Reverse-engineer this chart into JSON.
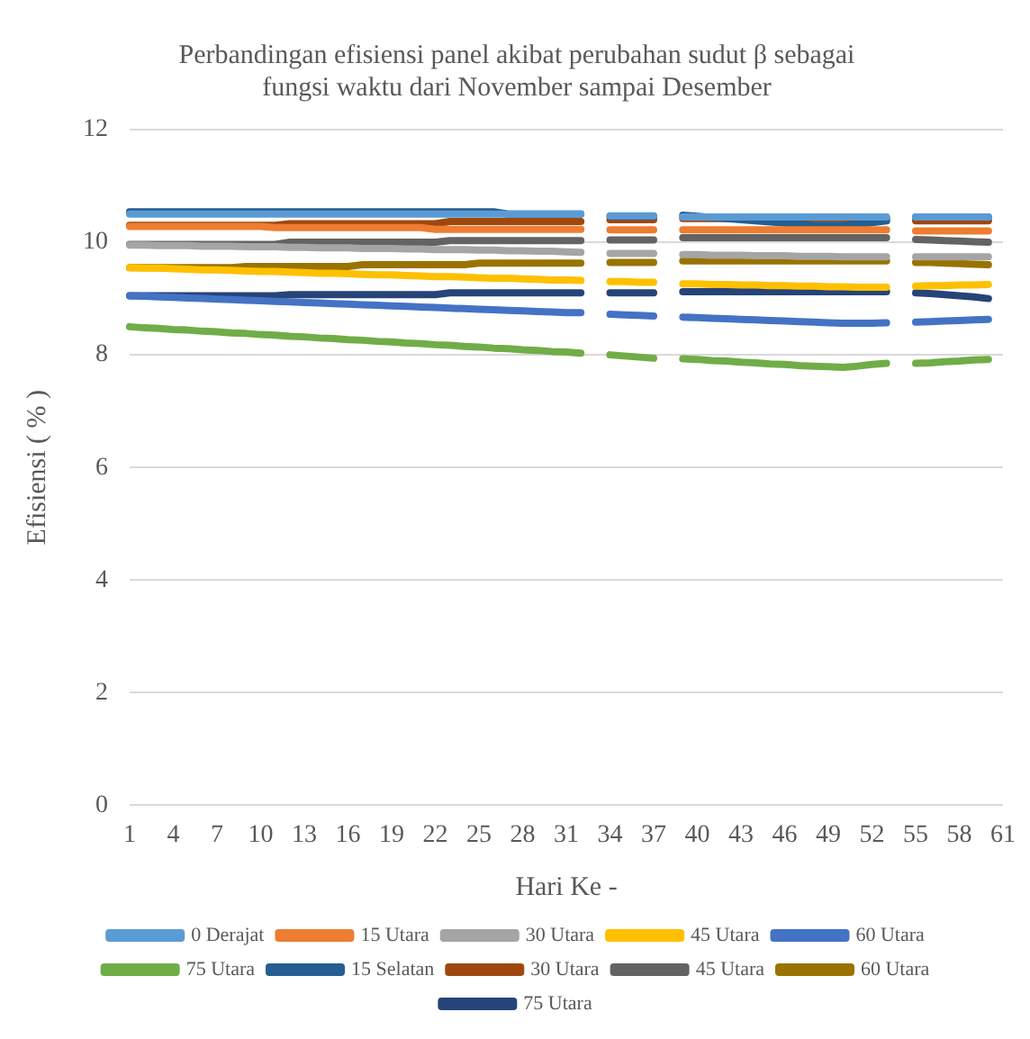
{
  "chart_data": {
    "type": "line",
    "title": "Perbandingan efisiensi panel akibat perubahan sudut β sebagai fungsi waktu dari November sampai Desember",
    "xlabel": "Hari Ke -",
    "ylabel": "Efisiensi ( % )",
    "categories": [
      "1",
      null,
      null,
      "4",
      null,
      null,
      "7",
      null,
      null,
      "10",
      null,
      null,
      "13",
      null,
      null,
      "16",
      null,
      null,
      "19",
      null,
      null,
      "22",
      null,
      null,
      "25",
      null,
      null,
      "28",
      null,
      null,
      "31",
      null,
      null,
      "34",
      null,
      null,
      "37",
      null,
      null,
      "40",
      null,
      null,
      "43",
      null,
      null,
      "46",
      null,
      null,
      "49",
      null,
      null,
      "52",
      null,
      null,
      "55",
      null,
      null,
      "58",
      null,
      null,
      "61"
    ],
    "ylim": [
      0,
      12
    ],
    "yticks": [
      0,
      2,
      4,
      6,
      8,
      10,
      12
    ],
    "grid": "y",
    "legend": "bottom",
    "marker": "none",
    "line_style": "solid",
    "series": [
      {
        "name": "0 Derajat",
        "color": "#5b9bd5",
        "values": [
          10.5,
          10.5,
          10.5,
          10.5,
          10.5,
          10.5,
          10.5,
          10.5,
          10.5,
          10.5,
          10.5,
          10.5,
          10.5,
          10.5,
          10.5,
          10.5,
          10.5,
          10.5,
          10.5,
          10.5,
          10.5,
          10.5,
          10.5,
          10.5,
          10.5,
          10.5,
          10.5,
          10.5,
          10.5,
          10.5,
          10.5,
          10.5,
          null,
          10.47,
          10.47,
          10.47,
          10.47,
          null,
          10.45,
          10.45,
          10.45,
          10.45,
          10.45,
          10.45,
          10.45,
          10.45,
          10.45,
          10.45,
          10.45,
          10.45,
          10.45,
          10.45,
          10.45,
          null,
          10.45,
          10.45,
          10.45,
          10.45,
          10.45,
          10.45,
          null
        ]
      },
      {
        "name": "15 Utara",
        "color": "#ed7d31",
        "values": [
          10.28,
          10.28,
          10.28,
          10.28,
          10.28,
          10.28,
          10.28,
          10.28,
          10.28,
          10.28,
          10.26,
          10.26,
          10.26,
          10.26,
          10.26,
          10.26,
          10.26,
          10.26,
          10.26,
          10.26,
          10.26,
          10.23,
          10.23,
          10.23,
          10.23,
          10.23,
          10.23,
          10.23,
          10.23,
          10.23,
          10.23,
          10.23,
          null,
          10.22,
          10.22,
          10.22,
          10.22,
          null,
          10.22,
          10.22,
          10.22,
          10.22,
          10.22,
          10.22,
          10.22,
          10.22,
          10.22,
          10.22,
          10.22,
          10.22,
          10.22,
          10.22,
          10.22,
          null,
          10.2,
          10.2,
          10.2,
          10.2,
          10.2,
          10.2,
          null
        ]
      },
      {
        "name": "30 Utara",
        "color": "#a5a5a5",
        "values": [
          9.95,
          9.95,
          9.94,
          9.94,
          9.94,
          9.93,
          9.93,
          9.93,
          9.92,
          9.92,
          9.92,
          9.91,
          9.91,
          9.9,
          9.9,
          9.9,
          9.89,
          9.89,
          9.89,
          9.88,
          9.88,
          9.87,
          9.87,
          9.87,
          9.86,
          9.86,
          9.85,
          9.85,
          9.84,
          9.84,
          9.83,
          9.82,
          null,
          9.8,
          9.8,
          9.8,
          9.8,
          null,
          9.78,
          9.78,
          9.77,
          9.77,
          9.77,
          9.76,
          9.76,
          9.76,
          9.75,
          9.75,
          9.75,
          9.74,
          9.74,
          9.74,
          9.74,
          null,
          9.74,
          9.74,
          9.74,
          9.74,
          9.74,
          9.74,
          null
        ]
      },
      {
        "name": "45 Utara",
        "color": "#ffc000",
        "values": [
          9.55,
          9.54,
          9.54,
          9.53,
          9.52,
          9.51,
          9.51,
          9.5,
          9.49,
          9.48,
          9.48,
          9.47,
          9.46,
          9.45,
          9.45,
          9.44,
          9.43,
          9.42,
          9.42,
          9.41,
          9.4,
          9.39,
          9.39,
          9.38,
          9.37,
          9.36,
          9.36,
          9.35,
          9.34,
          9.33,
          9.33,
          9.32,
          null,
          9.3,
          9.3,
          9.29,
          9.29,
          null,
          9.26,
          9.26,
          9.25,
          9.25,
          9.24,
          9.24,
          9.23,
          9.23,
          9.22,
          9.22,
          9.21,
          9.21,
          9.2,
          9.2,
          9.2,
          null,
          9.22,
          9.23,
          9.23,
          9.24,
          9.24,
          9.25,
          null
        ]
      },
      {
        "name": "60 Utara",
        "color": "#4472c4",
        "values": [
          9.05,
          9.04,
          9.03,
          9.02,
          9.01,
          9.0,
          8.99,
          8.98,
          8.97,
          8.96,
          8.95,
          8.94,
          8.93,
          8.92,
          8.91,
          8.9,
          8.89,
          8.88,
          8.87,
          8.86,
          8.85,
          8.84,
          8.83,
          8.82,
          8.81,
          8.8,
          8.79,
          8.78,
          8.77,
          8.76,
          8.75,
          8.75,
          null,
          8.72,
          8.71,
          8.7,
          8.69,
          null,
          8.67,
          8.66,
          8.65,
          8.64,
          8.63,
          8.62,
          8.61,
          8.6,
          8.59,
          8.58,
          8.57,
          8.56,
          8.56,
          8.56,
          8.57,
          null,
          8.58,
          8.59,
          8.6,
          8.61,
          8.62,
          8.63,
          null
        ]
      },
      {
        "name": "75 Utara",
        "color": "#70ad47",
        "values": [
          8.5,
          8.48,
          8.47,
          8.45,
          8.44,
          8.42,
          8.41,
          8.39,
          8.38,
          8.36,
          8.35,
          8.33,
          8.32,
          8.3,
          8.29,
          8.27,
          8.26,
          8.24,
          8.23,
          8.21,
          8.2,
          8.18,
          8.17,
          8.15,
          8.14,
          8.12,
          8.11,
          8.09,
          8.08,
          8.06,
          8.05,
          8.03,
          null,
          8.0,
          7.98,
          7.96,
          7.94,
          null,
          7.93,
          7.92,
          7.9,
          7.89,
          7.87,
          7.86,
          7.84,
          7.83,
          7.81,
          7.8,
          7.79,
          7.78,
          7.8,
          7.83,
          7.85,
          null,
          7.85,
          7.86,
          7.88,
          7.89,
          7.91,
          7.92,
          null
        ]
      },
      {
        "name": "15 Selatan",
        "color": "#255e91",
        "values": [
          10.54,
          10.54,
          10.54,
          10.54,
          10.54,
          10.54,
          10.54,
          10.54,
          10.54,
          10.54,
          10.54,
          10.54,
          10.54,
          10.54,
          10.54,
          10.54,
          10.54,
          10.54,
          10.54,
          10.54,
          10.54,
          10.54,
          10.54,
          10.54,
          10.54,
          10.54,
          10.5,
          10.5,
          10.5,
          10.5,
          10.5,
          10.5,
          null,
          10.46,
          10.46,
          10.46,
          10.46,
          null,
          10.48,
          10.46,
          10.44,
          10.42,
          10.4,
          10.38,
          10.36,
          10.34,
          10.32,
          10.3,
          10.3,
          10.3,
          10.32,
          10.35,
          10.38,
          null,
          10.45,
          10.45,
          10.45,
          10.45,
          10.45,
          10.45,
          null
        ]
      },
      {
        "name": "30 Utara",
        "color": "#9e480e",
        "values": [
          10.3,
          10.3,
          10.3,
          10.3,
          10.3,
          10.3,
          10.3,
          10.3,
          10.3,
          10.3,
          10.3,
          10.33,
          10.33,
          10.33,
          10.33,
          10.33,
          10.33,
          10.33,
          10.33,
          10.33,
          10.33,
          10.33,
          10.37,
          10.37,
          10.37,
          10.37,
          10.37,
          10.37,
          10.37,
          10.37,
          10.37,
          10.37,
          null,
          10.4,
          10.4,
          10.4,
          10.4,
          null,
          10.42,
          10.42,
          10.42,
          10.42,
          10.42,
          10.42,
          10.42,
          10.42,
          10.42,
          10.42,
          10.42,
          10.42,
          10.42,
          10.42,
          10.42,
          null,
          10.38,
          10.38,
          10.38,
          10.38,
          10.38,
          10.38,
          null
        ]
      },
      {
        "name": "45 Utara",
        "color": "#636363",
        "values": [
          9.96,
          9.96,
          9.96,
          9.96,
          9.96,
          9.96,
          9.96,
          9.96,
          9.96,
          9.96,
          9.96,
          10.0,
          10.0,
          10.0,
          10.0,
          10.0,
          10.0,
          10.0,
          10.0,
          10.0,
          10.0,
          10.0,
          10.03,
          10.03,
          10.03,
          10.03,
          10.03,
          10.03,
          10.03,
          10.03,
          10.03,
          10.03,
          null,
          10.04,
          10.04,
          10.04,
          10.04,
          null,
          10.08,
          10.08,
          10.08,
          10.08,
          10.08,
          10.08,
          10.08,
          10.08,
          10.08,
          10.08,
          10.08,
          10.08,
          10.08,
          10.08,
          10.08,
          null,
          10.05,
          10.04,
          10.03,
          10.02,
          10.01,
          10.0,
          null
        ]
      },
      {
        "name": "60 Utara",
        "color": "#997300",
        "values": [
          9.55,
          9.55,
          9.55,
          9.55,
          9.55,
          9.55,
          9.55,
          9.55,
          9.57,
          9.57,
          9.57,
          9.57,
          9.57,
          9.57,
          9.57,
          9.57,
          9.6,
          9.6,
          9.6,
          9.6,
          9.6,
          9.6,
          9.6,
          9.6,
          9.63,
          9.63,
          9.63,
          9.63,
          9.63,
          9.63,
          9.63,
          9.63,
          null,
          9.64,
          9.64,
          9.64,
          9.64,
          null,
          9.67,
          9.67,
          9.67,
          9.67,
          9.67,
          9.67,
          9.67,
          9.67,
          9.67,
          9.67,
          9.67,
          9.67,
          9.67,
          9.67,
          9.67,
          null,
          9.64,
          9.64,
          9.63,
          9.62,
          9.61,
          9.6,
          null
        ]
      },
      {
        "name": "75 Utara",
        "color": "#264478",
        "values": [
          9.05,
          9.05,
          9.05,
          9.05,
          9.05,
          9.05,
          9.05,
          9.05,
          9.05,
          9.05,
          9.05,
          9.07,
          9.07,
          9.07,
          9.07,
          9.07,
          9.07,
          9.07,
          9.07,
          9.07,
          9.07,
          9.07,
          9.1,
          9.1,
          9.1,
          9.1,
          9.1,
          9.1,
          9.1,
          9.1,
          9.1,
          9.1,
          null,
          9.1,
          9.1,
          9.1,
          9.1,
          null,
          9.12,
          9.12,
          9.12,
          9.12,
          9.12,
          9.12,
          9.12,
          9.12,
          9.12,
          9.12,
          9.12,
          9.12,
          9.12,
          9.12,
          9.12,
          null,
          9.1,
          9.09,
          9.07,
          9.05,
          9.03,
          9.0,
          null
        ]
      }
    ]
  }
}
